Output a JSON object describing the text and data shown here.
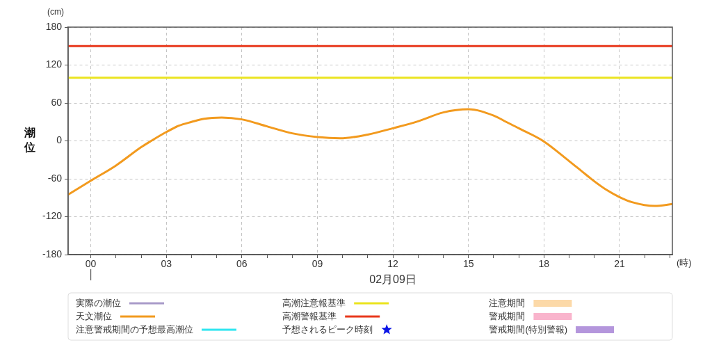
{
  "chart_data": {
    "type": "line",
    "xlabel": "(時)",
    "ylabel": "潮位",
    "annotations": [
      "(cm)",
      "02月09日"
    ],
    "x": [
      -0.9,
      0,
      1,
      2,
      2.4,
      3,
      3.5,
      4,
      4.5,
      5.2,
      6,
      7,
      8,
      9,
      9.9,
      11,
      12,
      13,
      14,
      15,
      16,
      16.5,
      17,
      18,
      19,
      19.5,
      20,
      20.5,
      21,
      21.5,
      22.4,
      23.1
    ],
    "series": [
      {
        "name": "実際の潮位",
        "color": "#a99bc9",
        "values": [
          null,
          null,
          null,
          null,
          null,
          null,
          null,
          null,
          null,
          null,
          null,
          null,
          null,
          null,
          null,
          null,
          null,
          null,
          null,
          null,
          null,
          null,
          null,
          null,
          null,
          null,
          null,
          null,
          null,
          null,
          null,
          null
        ]
      },
      {
        "name": "天文潮位",
        "color": "#f29a1e",
        "values": [
          -85,
          -63,
          -39,
          -10,
          0,
          14,
          24,
          30,
          35,
          37,
          34,
          23,
          12,
          6,
          4,
          10,
          20,
          31,
          45,
          50,
          40,
          30,
          20,
          -1,
          -32,
          -48,
          -64,
          -78,
          -89,
          -97,
          -103,
          -100
        ]
      },
      {
        "name": "注意警戒期間の予想最高潮位",
        "color": "#2ee6f0",
        "values": [
          null,
          null,
          null,
          null,
          null,
          null,
          null,
          null,
          null,
          null,
          null,
          null,
          null,
          null,
          null,
          null,
          null,
          null,
          null,
          null,
          null,
          null,
          null,
          null,
          null,
          null,
          null,
          null,
          null,
          null,
          null,
          null
        ]
      },
      {
        "name": "予想されるピーク時刻",
        "type": "scatter",
        "marker": "star",
        "color": "#0a14e6",
        "values": [
          null,
          null,
          null,
          null,
          null,
          null,
          null,
          null,
          null,
          null,
          null,
          null,
          null,
          null,
          null,
          null,
          null,
          null,
          null,
          null,
          null,
          null,
          null,
          null,
          null,
          null,
          null,
          null,
          null,
          null,
          null,
          null
        ]
      },
      {
        "name": "注意期間",
        "type": "area",
        "color": "#fcd9a8",
        "values": [
          null,
          null,
          null,
          null,
          null,
          null,
          null,
          null,
          null,
          null,
          null,
          null,
          null,
          null,
          null,
          null,
          null,
          null,
          null,
          null,
          null,
          null,
          null,
          null,
          null,
          null,
          null,
          null,
          null,
          null,
          null,
          null
        ]
      },
      {
        "name": "警戒期間",
        "type": "area",
        "color": "#f9b4cc",
        "values": [
          null,
          null,
          null,
          null,
          null,
          null,
          null,
          null,
          null,
          null,
          null,
          null,
          null,
          null,
          null,
          null,
          null,
          null,
          null,
          null,
          null,
          null,
          null,
          null,
          null,
          null,
          null,
          null,
          null,
          null,
          null,
          null
        ]
      },
      {
        "name": "警戒期間(特別警報)",
        "type": "area",
        "color": "#b496dc",
        "values": [
          null,
          null,
          null,
          null,
          null,
          null,
          null,
          null,
          null,
          null,
          null,
          null,
          null,
          null,
          null,
          null,
          null,
          null,
          null,
          null,
          null,
          null,
          null,
          null,
          null,
          null,
          null,
          null,
          null,
          null,
          null,
          null
        ]
      }
    ],
    "ref_lines": [
      {
        "axis": "y",
        "value": 100,
        "label": "高潮注意報基準",
        "color": "#ebe41e"
      },
      {
        "axis": "y",
        "value": 150,
        "label": "高潮警報基準",
        "color": "#e8381c"
      }
    ],
    "xlim": [
      -0.9,
      23.1
    ],
    "ylim": [
      -180,
      180
    ],
    "xticks": [
      {
        "value": 0,
        "label": "00"
      },
      {
        "value": 1,
        "label": null
      },
      {
        "value": 2,
        "label": null
      },
      {
        "value": 3,
        "label": "03"
      },
      {
        "value": 4,
        "label": null
      },
      {
        "value": 5,
        "label": null
      },
      {
        "value": 6,
        "label": "06"
      },
      {
        "value": 7,
        "label": null
      },
      {
        "value": 8,
        "label": null
      },
      {
        "value": 9,
        "label": "09"
      },
      {
        "value": 10,
        "label": null
      },
      {
        "value": 11,
        "label": null
      },
      {
        "value": 12,
        "label": "12"
      },
      {
        "value": 13,
        "label": null
      },
      {
        "value": 14,
        "label": null
      },
      {
        "value": 15,
        "label": "15"
      },
      {
        "value": 16,
        "label": null
      },
      {
        "value": 17,
        "label": null
      },
      {
        "value": 18,
        "label": "18"
      },
      {
        "value": 19,
        "label": null
      },
      {
        "value": 20,
        "label": null
      },
      {
        "value": 21,
        "label": "21"
      },
      {
        "value": 22,
        "label": null
      },
      {
        "value": 23,
        "label": null
      }
    ],
    "yticks": [
      -180,
      -120,
      -60,
      0,
      60,
      120,
      180
    ],
    "grid": true,
    "legend": "bottom"
  }
}
